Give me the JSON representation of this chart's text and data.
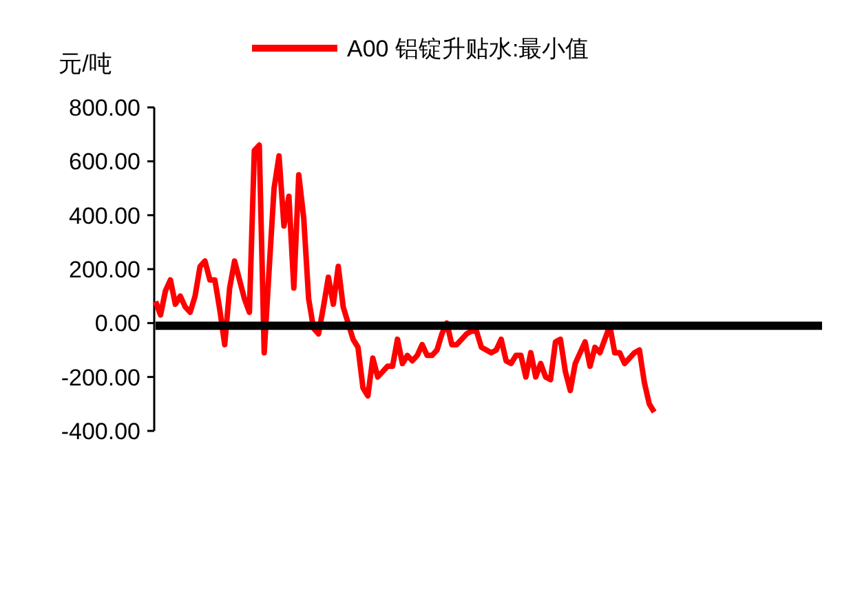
{
  "chart_data": {
    "type": "line",
    "ylabel": "元/吨",
    "legend": "top",
    "categories": [
      null,
      null,
      null,
      null,
      null,
      null,
      null,
      null,
      null,
      null,
      null,
      null,
      null,
      null,
      null,
      null,
      null,
      null,
      null,
      null,
      null,
      null,
      null,
      null,
      null,
      null,
      null,
      null,
      null,
      null,
      null,
      null,
      null,
      null,
      null,
      null,
      null,
      null,
      null,
      null,
      null,
      null,
      null,
      null,
      null,
      null,
      null,
      null,
      null,
      null,
      null,
      null,
      null,
      null,
      null,
      null,
      null,
      null,
      null,
      null,
      null,
      null,
      null,
      null,
      null,
      null,
      null,
      null,
      null,
      null,
      null,
      null,
      null,
      null,
      null,
      null,
      null,
      null,
      null,
      null,
      null,
      null,
      null,
      null,
      null,
      null,
      null,
      null,
      null,
      null,
      null,
      null,
      null,
      null,
      null,
      null,
      null,
      null,
      null,
      null,
      null,
      null,
      null,
      null,
      null,
      null,
      null,
      null,
      null,
      null,
      null,
      null,
      null,
      null,
      null,
      null,
      null,
      null,
      null,
      null,
      null,
      null,
      null,
      null,
      null,
      null,
      null,
      null,
      null,
      null,
      null,
      null,
      null,
      null,
      null,
      null
    ],
    "series": [
      {
        "name": "A00 铝锭升贴水:最小值",
        "color": "#ff0000",
        "values": [
          80,
          30,
          120,
          160,
          70,
          100,
          60,
          40,
          100,
          210,
          230,
          160,
          160,
          50,
          -80,
          130,
          230,
          160,
          90,
          40,
          640,
          660,
          -110,
          200,
          500,
          620,
          360,
          470,
          130,
          550,
          390,
          90,
          -20,
          -40,
          60,
          170,
          70,
          210,
          60,
          0,
          -60,
          -90,
          -240,
          -270,
          -130,
          -200,
          -180,
          -160,
          -160,
          -60,
          -150,
          -120,
          -140,
          -120,
          -80,
          -120,
          -120,
          -100,
          -40,
          0,
          -80,
          -80,
          -60,
          -40,
          -30,
          -30,
          -90,
          -100,
          -110,
          -100,
          -60,
          -140,
          -150,
          -120,
          -120,
          -200,
          -110,
          -200,
          -150,
          -200,
          -210,
          -70,
          -60,
          -180,
          -250,
          -150,
          -110,
          -70,
          -160,
          -90,
          -110,
          -60,
          -10,
          -110,
          -110,
          -150,
          -130,
          -110,
          -100,
          -220,
          -300,
          -330,
          null,
          null,
          null,
          null,
          null,
          null,
          null,
          null,
          null,
          null,
          null,
          null,
          null,
          null,
          null,
          null,
          null,
          null,
          null,
          null,
          null,
          null,
          null,
          null,
          null,
          null,
          null,
          null,
          null,
          null,
          null,
          null,
          null,
          null
        ]
      },
      {
        "color": "#000000",
        "values": [
          -10,
          -10,
          -10,
          -10,
          -10,
          -10,
          -10,
          -10,
          -10,
          -10,
          -10,
          -10,
          -10,
          -10,
          -10,
          -10,
          -10,
          -10,
          -10,
          -10,
          -10,
          -10,
          -10,
          -10,
          -10,
          -10,
          -10,
          -10,
          -10,
          -10,
          -10,
          -10,
          -10,
          -10,
          -10,
          -10,
          -10,
          -10,
          -10,
          -10,
          -10,
          -10,
          -10,
          -10,
          -10,
          -10,
          -10,
          -10,
          -10,
          -10,
          -10,
          -10,
          -10,
          -10,
          -10,
          -10,
          -10,
          -10,
          -10,
          -10,
          -10,
          -10,
          -10,
          -10,
          -10,
          -10,
          -10,
          -10,
          -10,
          -10,
          -10,
          -10,
          -10,
          -10,
          -10,
          -10,
          -10,
          -10,
          -10,
          -10,
          -10,
          -10,
          -10,
          -10,
          -10,
          -10,
          -10,
          -10,
          -10,
          -10,
          -10,
          -10,
          -10,
          -10,
          -10,
          -10,
          -10,
          -10,
          -10,
          -10,
          -10,
          -10,
          -10,
          -10,
          -10,
          -10,
          -10,
          -10,
          -10,
          -10,
          -10,
          -10,
          -10,
          -10,
          -10,
          -10,
          -10,
          -10,
          -10,
          -10,
          -10,
          -10,
          -10,
          -10,
          -10,
          -10,
          -10,
          -10,
          -10,
          -10,
          -10,
          -10,
          -10,
          -10,
          -10,
          -10
        ]
      }
    ],
    "ylim": [
      -400,
      800
    ],
    "yticks": [
      {
        "value": 800,
        "label": "800.00"
      },
      {
        "value": 600,
        "label": "600.00"
      },
      {
        "value": 400,
        "label": "400.00"
      },
      {
        "value": 200,
        "label": "200.00"
      },
      {
        "value": 0,
        "label": "0.00"
      },
      {
        "value": -200,
        "label": "-200.00"
      },
      {
        "value": -400,
        "label": "-400.00"
      }
    ],
    "tick_labels": "y",
    "grid": false
  }
}
